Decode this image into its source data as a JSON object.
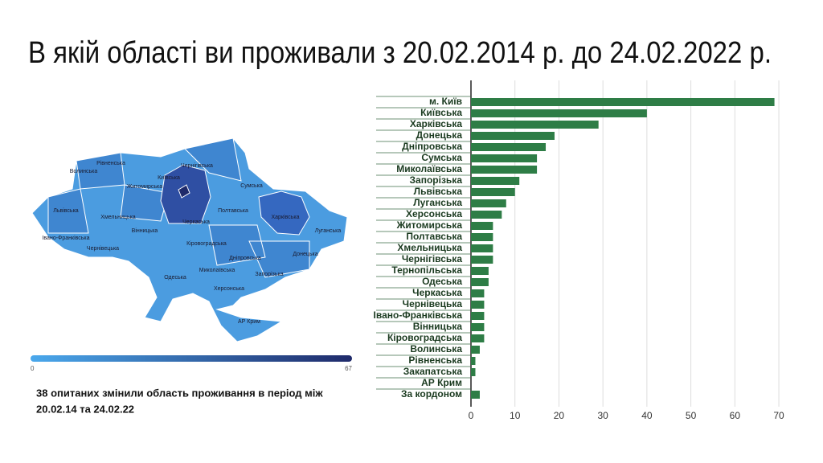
{
  "title": "В якій області ви проживали з 20.02.2014 р. до 24.02.2022 р.",
  "map": {
    "labels": [
      "Рівненська",
      "Волинська",
      "Чернігівська",
      "Київська",
      "Житомирська",
      "Сумська",
      "Львівська",
      "Хмельницька",
      "Полтавська",
      "Харківська",
      "Черкаська",
      "Вінницька",
      "Луганська",
      "Івано-Франківська",
      "Кіровоградська",
      "Чернівецька",
      "Дніпровська",
      "Донецька",
      "Миколаївська",
      "Запорізька",
      "Одеська",
      "Херсонська",
      "АР Крим"
    ],
    "legend_min": "0",
    "legend_max": "67"
  },
  "note": [
    "38 опитаних змінили область проживання в період між",
    "20.02.14 та 24.02.22"
  ],
  "chart_data": {
    "type": "hbar",
    "color": "#2e7d46",
    "categories": [
      "м. Київ",
      "Київська",
      "Харківська",
      "Донецька",
      "Дніпровська",
      "Сумська",
      "Миколаївська",
      "Запорізька",
      "Львівська",
      "Луганська",
      "Херсонська",
      "Житомирська",
      "Полтавська",
      "Хмельницька",
      "Чернігівська",
      "Тернопільська",
      "Одеська",
      "Черкаська",
      "Чернівецька",
      "Івано-Франківська",
      "Вінницька",
      "Кіровоградська",
      "Волинська",
      "Рівненська",
      "Закапатська",
      "АР Крим",
      "За кордоном"
    ],
    "values": [
      69,
      40,
      29,
      19,
      17,
      15,
      15,
      11,
      10,
      8,
      7,
      5,
      5,
      5,
      5,
      4,
      4,
      3,
      3,
      3,
      3,
      3,
      2,
      1,
      1,
      0,
      2
    ],
    "xlim": [
      0,
      72
    ],
    "xticks": [
      0,
      10,
      20,
      30,
      40,
      50,
      60,
      70
    ],
    "grid": true
  }
}
